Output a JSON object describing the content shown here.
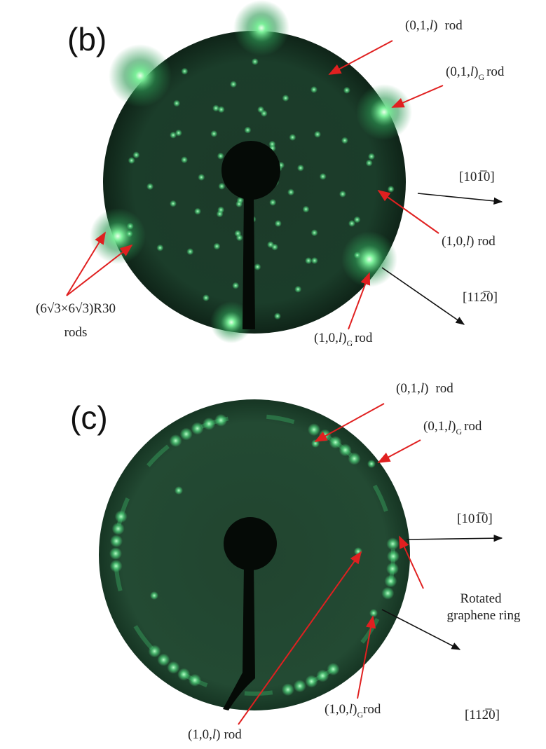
{
  "panels": [
    {
      "label": "(b)",
      "annotations": {
        "rod01": {
          "open": "(0,1,",
          "index": "l",
          "close": ")",
          "suffix": "rod"
        },
        "rod01g": {
          "open": "(0,1,",
          "index": "l",
          "close": ")",
          "subscript": "G",
          "suffix": "rod"
        },
        "dir1010": "[101̅0]",
        "rod10": {
          "open": "(1,0,",
          "index": "l",
          "close": ")",
          "suffix": "rod"
        },
        "dir1120": "[112̅0]",
        "rod10g": {
          "open": "(1,0,",
          "index": "l",
          "close": ")",
          "subscript": "G",
          "suffix": "rod"
        },
        "superstructure": {
          "line1": "(6√3×6√3)R30",
          "line2": "rods"
        }
      }
    },
    {
      "label": "(c)",
      "annotations": {
        "rod01": {
          "open": "(0,1,",
          "index": "l",
          "close": ")",
          "suffix": "rod"
        },
        "rod01g": {
          "open": "(0,1,",
          "index": "l",
          "close": ")",
          "subscript": "G",
          "suffix": "rod"
        },
        "dir1010": "[101̅0]",
        "ring": {
          "line1": "Rotated",
          "line2": "graphene ring"
        },
        "dir1120": "[112̅0]",
        "rod10g": {
          "open": "(1,0,",
          "index": "l",
          "close": ")",
          "subscript": "G",
          "suffix": "rod"
        },
        "rod10": {
          "open": "(1,0,",
          "index": "l",
          "close": ")",
          "suffix": "rod"
        }
      }
    }
  ]
}
